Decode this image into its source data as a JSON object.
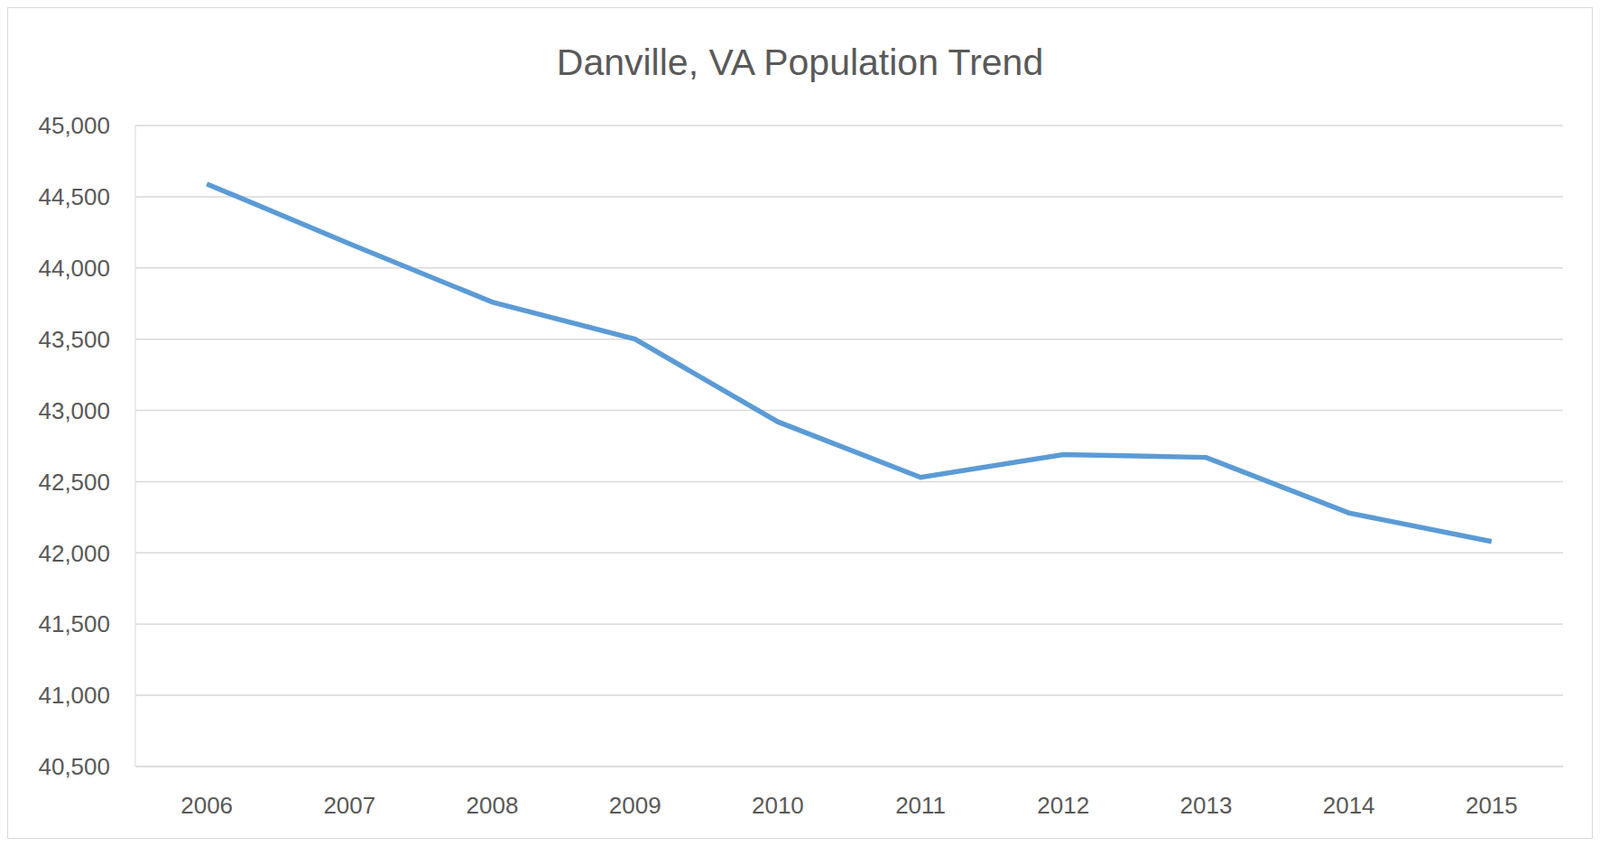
{
  "chart_data": {
    "type": "line",
    "title": "Danville, VA Population Trend",
    "categories": [
      "2006",
      "2007",
      "2008",
      "2009",
      "2010",
      "2011",
      "2012",
      "2013",
      "2014",
      "2015"
    ],
    "values": [
      44590,
      44170,
      43760,
      43500,
      42920,
      42530,
      42690,
      42670,
      42280,
      42080
    ],
    "color": "#5b9bd5",
    "ylim": [
      40500,
      45000
    ],
    "yticks": [
      {
        "value": 40500,
        "label": "40,500"
      },
      {
        "value": 41000,
        "label": "41,000"
      },
      {
        "value": 41500,
        "label": "41,500"
      },
      {
        "value": 42000,
        "label": "42,000"
      },
      {
        "value": 42500,
        "label": "42,500"
      },
      {
        "value": 43000,
        "label": "43,000"
      },
      {
        "value": 43500,
        "label": "43,500"
      },
      {
        "value": 44000,
        "label": "44,000"
      },
      {
        "value": 44500,
        "label": "44,500"
      },
      {
        "value": 45000,
        "label": "45,000"
      }
    ],
    "grid": true
  }
}
